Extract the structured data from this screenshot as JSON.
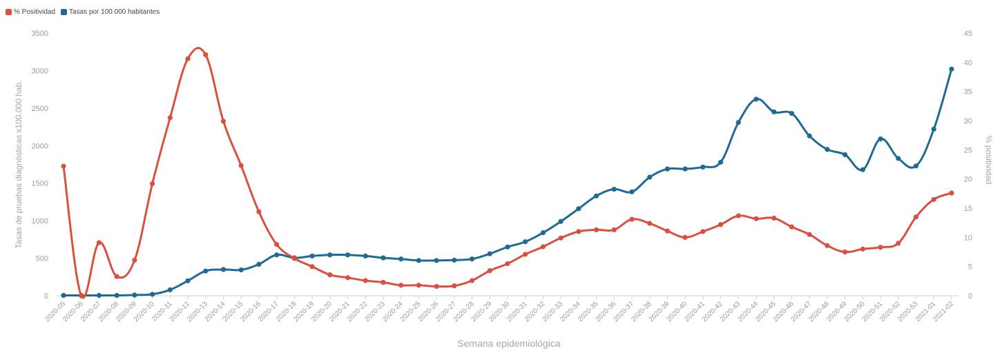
{
  "legend": {
    "items": [
      {
        "label": "% Positividad",
        "color": "#d9503f"
      },
      {
        "label": "Tasas por 100.000 habitantes",
        "color": "#1f6a94"
      }
    ]
  },
  "chart_data": {
    "type": "line",
    "xlabel": "Semana epidemiológica",
    "ylabel_left": "Tasas de pruebas diagnósticas x100.000 hab.",
    "ylabel_right": "% positividad",
    "y_left_lim": [
      0,
      3500
    ],
    "y_left_ticks": [
      0,
      500,
      1000,
      1500,
      2000,
      2500,
      3000,
      3500
    ],
    "y_right_lim": [
      0,
      45
    ],
    "y_right_ticks": [
      0,
      5,
      10,
      15,
      20,
      25,
      30,
      35,
      40,
      45
    ],
    "grid": false,
    "legend_position": "top-left",
    "categories": [
      "2020-05",
      "2020-06",
      "2020-07",
      "2020-08",
      "2020-09",
      "2020-10",
      "2020-11",
      "2020-12",
      "2020-13",
      "2020-14",
      "2020-15",
      "2020-16",
      "2020-17",
      "2020-18",
      "2020-19",
      "2020-20",
      "2020-21",
      "2020-22",
      "2020-23",
      "2020-24",
      "2020-25",
      "2020-26",
      "2020-27",
      "2020-28",
      "2020-29",
      "2020-30",
      "2020-31",
      "2020-32",
      "2020-33",
      "2020-34",
      "2020-35",
      "2020-36",
      "2020-37",
      "2020-38",
      "2020-39",
      "2020-40",
      "2020-41",
      "2020-42",
      "2020-43",
      "2020-44",
      "2020-45",
      "2020-46",
      "2020-47",
      "2020-48",
      "2020-49",
      "2020-50",
      "2020-51",
      "2020-52",
      "2020-53",
      "2021-01",
      "2021-02"
    ],
    "series": [
      {
        "name": "% Positividad",
        "axis": "right",
        "color": "#d9503f",
        "values": [
          22.2,
          0,
          9.1,
          3.3,
          6.1,
          19.2,
          30.5,
          40.6,
          41.3,
          29.9,
          22.3,
          14.4,
          8.8,
          6.4,
          5.0,
          3.6,
          3.1,
          2.6,
          2.3,
          1.8,
          1.8,
          1.6,
          1.7,
          2.6,
          4.3,
          5.5,
          7.1,
          8.4,
          9.9,
          11.0,
          11.3,
          11.3,
          13.1,
          12.4,
          11.1,
          10.0,
          11.0,
          12.2,
          13.7,
          13.2,
          13.3,
          11.8,
          10.5,
          8.6,
          7.5,
          8.0,
          8.3,
          9.0,
          13.5,
          16.5,
          17.6
        ]
      },
      {
        "name": "Tasas por 100.000 habitantes",
        "axis": "left",
        "color": "#1f6a94",
        "values": [
          5,
          5,
          5,
          5,
          10,
          20,
          80,
          200,
          330,
          350,
          345,
          420,
          545,
          505,
          530,
          545,
          545,
          530,
          505,
          490,
          470,
          470,
          475,
          490,
          560,
          650,
          720,
          840,
          990,
          1160,
          1330,
          1420,
          1385,
          1580,
          1690,
          1690,
          1715,
          1780,
          2310,
          2620,
          2450,
          2430,
          2130,
          1950,
          1880,
          1680,
          2090,
          1830,
          1730,
          2220,
          3020
        ]
      }
    ]
  }
}
